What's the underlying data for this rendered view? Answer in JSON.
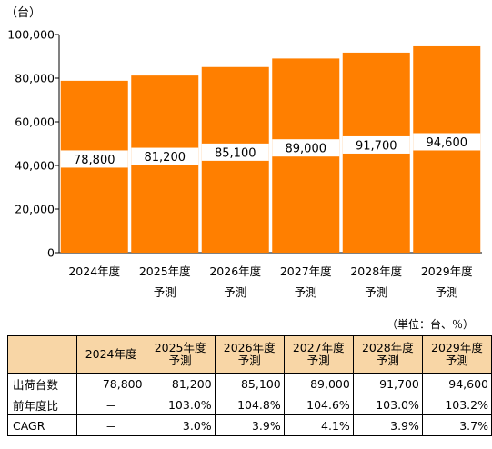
{
  "chart_data": {
    "type": "bar",
    "y_unit_label": "（台）",
    "categories": [
      [
        "2024年度"
      ],
      [
        "2025年度",
        "予測"
      ],
      [
        "2026年度",
        "予測"
      ],
      [
        "2027年度",
        "予測"
      ],
      [
        "2028年度",
        "予測"
      ],
      [
        "2029年度",
        "予測"
      ]
    ],
    "values": [
      78800,
      81200,
      85100,
      89000,
      91700,
      94600
    ],
    "data_labels": [
      "78,800",
      "81,200",
      "85,100",
      "89,000",
      "91,700",
      "94,600"
    ],
    "yticks": [
      "0",
      "20,000",
      "40,000",
      "60,000",
      "80,000",
      "100,000"
    ],
    "ylim": [
      0,
      100000
    ],
    "bar_color": "#ff7f00",
    "label_bg": "#ffffff",
    "grid": false
  },
  "table": {
    "unit_note": "（単位：台、％）",
    "header_fill": "#f8d6a6",
    "columns": [
      {
        "line1": "",
        "line2": ""
      },
      {
        "line1": "2024年度",
        "line2": ""
      },
      {
        "line1": "2025年度",
        "line2": "予測"
      },
      {
        "line1": "2026年度",
        "line2": "予測"
      },
      {
        "line1": "2027年度",
        "line2": "予測"
      },
      {
        "line1": "2028年度",
        "line2": "予測"
      },
      {
        "line1": "2029年度",
        "line2": "予測"
      }
    ],
    "rows": [
      {
        "label": "出荷台数",
        "cells": [
          "78,800",
          "81,200",
          "85,100",
          "89,000",
          "91,700",
          "94,600"
        ]
      },
      {
        "label": "前年度比",
        "cells": [
          "－",
          "103.0%",
          "104.8%",
          "104.6%",
          "103.0%",
          "103.2%"
        ]
      },
      {
        "label": "CAGR",
        "cells": [
          "－",
          "3.0%",
          "3.9%",
          "4.1%",
          "3.9%",
          "3.7%"
        ]
      }
    ]
  }
}
